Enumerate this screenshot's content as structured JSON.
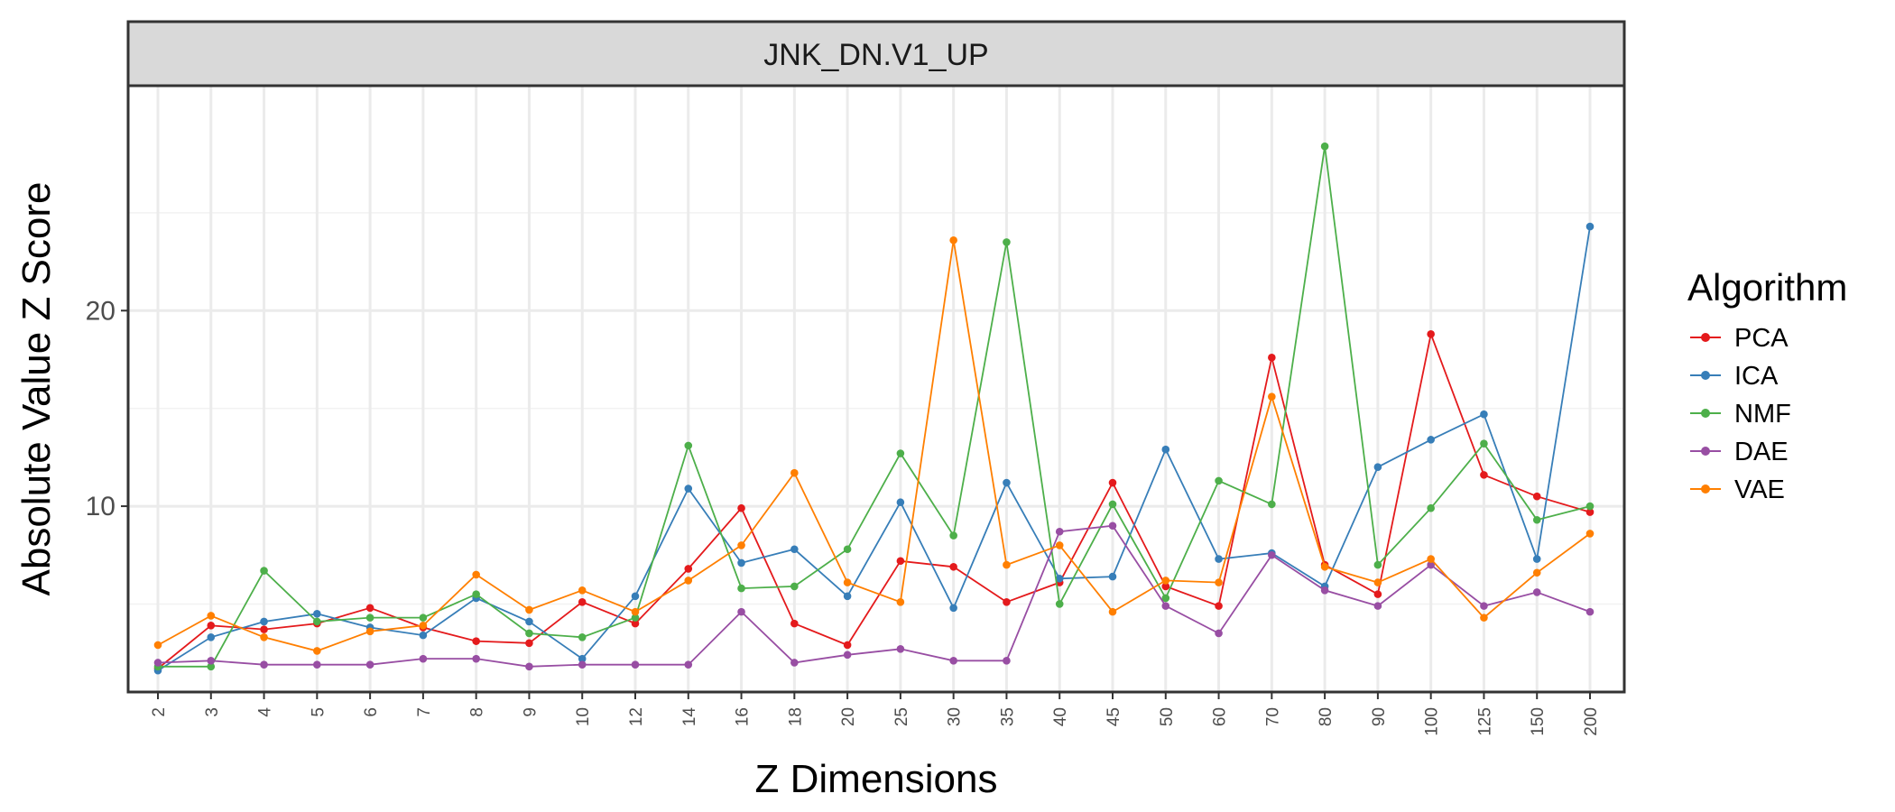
{
  "chart_data": {
    "type": "line",
    "facet_title": "JNK_DN.V1_UP",
    "xlabel": "Z Dimensions",
    "ylabel": "Absolute Value Z Score",
    "categories": [
      "2",
      "3",
      "4",
      "5",
      "6",
      "7",
      "8",
      "9",
      "10",
      "12",
      "14",
      "16",
      "18",
      "20",
      "25",
      "30",
      "35",
      "40",
      "45",
      "50",
      "60",
      "70",
      "80",
      "90",
      "100",
      "125",
      "150",
      "200"
    ],
    "yticks": [
      10,
      20
    ],
    "ylim": [
      0.5,
      31.5
    ],
    "grid": true,
    "legend": {
      "title": "Algorithm",
      "position": "right"
    },
    "series": [
      {
        "name": "PCA",
        "color": "#E41A1C",
        "values": [
          1.7,
          3.9,
          3.7,
          4.0,
          4.8,
          3.8,
          3.1,
          3.0,
          5.1,
          4.0,
          6.8,
          9.9,
          4.0,
          2.9,
          7.2,
          6.9,
          5.1,
          6.1,
          11.2,
          5.9,
          4.9,
          17.6,
          7.0,
          5.5,
          18.8,
          11.6,
          10.5,
          9.7
        ]
      },
      {
        "name": "ICA",
        "color": "#377EB8",
        "values": [
          1.6,
          3.3,
          4.1,
          4.5,
          3.8,
          3.4,
          5.3,
          4.1,
          2.2,
          5.4,
          10.9,
          7.1,
          7.8,
          5.4,
          10.2,
          4.8,
          11.2,
          6.3,
          6.4,
          12.9,
          7.3,
          7.6,
          5.9,
          12.0,
          13.4,
          14.7,
          7.3,
          24.3
        ]
      },
      {
        "name": "NMF",
        "color": "#4DAF4A",
        "values": [
          1.8,
          1.8,
          6.7,
          4.1,
          4.3,
          4.3,
          5.5,
          3.5,
          3.3,
          4.3,
          13.1,
          5.8,
          5.9,
          7.8,
          12.7,
          8.5,
          23.5,
          5.0,
          10.1,
          5.3,
          11.3,
          10.1,
          28.4,
          7.0,
          9.9,
          13.2,
          9.3,
          10.0
        ]
      },
      {
        "name": "DAE",
        "color": "#984EA3",
        "values": [
          2.0,
          2.1,
          1.9,
          1.9,
          1.9,
          2.2,
          2.2,
          1.8,
          1.9,
          1.9,
          1.9,
          4.6,
          2.0,
          2.4,
          2.7,
          2.1,
          2.1,
          8.7,
          9.0,
          4.9,
          3.5,
          7.5,
          5.7,
          4.9,
          7.0,
          4.9,
          5.6,
          4.6
        ]
      },
      {
        "name": "VAE",
        "color": "#FF7F00",
        "values": [
          2.9,
          4.4,
          3.3,
          2.6,
          3.6,
          3.9,
          6.5,
          4.7,
          5.7,
          4.6,
          6.2,
          8.0,
          11.7,
          6.1,
          5.1,
          23.6,
          7.0,
          8.0,
          4.6,
          6.2,
          6.1,
          15.6,
          6.9,
          6.1,
          7.3,
          4.3,
          6.6,
          8.6
        ]
      }
    ]
  }
}
